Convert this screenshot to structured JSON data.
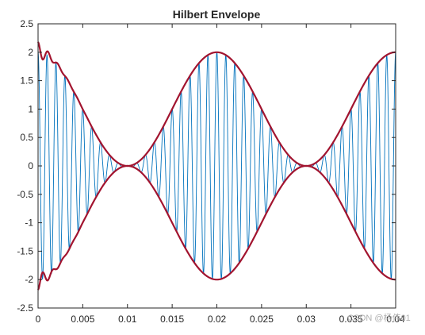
{
  "chart_data": {
    "type": "line",
    "title": "Hilbert Envelope",
    "xlabel": "",
    "ylabel": "",
    "xlim": [
      0,
      0.04
    ],
    "ylim": [
      -2.5,
      2.5
    ],
    "xticks": [
      "0",
      "0.005",
      "0.01",
      "0.015",
      "0.02",
      "0.025",
      "0.03",
      "0.035",
      "0.04"
    ],
    "yticks": [
      "-2.5",
      "-2",
      "-1.5",
      "-1",
      "-0.5",
      "0",
      "0.5",
      "1",
      "1.5",
      "2",
      "2.5"
    ],
    "grid": false,
    "legend": "none",
    "series": [
      {
        "kind": "signal",
        "description_formula": "(1 + cos(2*pi*50*t)) * cos(2*pi*1000*t)",
        "carrier_hz": 1000,
        "modulation_hz": 50,
        "color": "#0072BD"
      },
      {
        "kind": "upper-envelope",
        "description_formula": "1 + cos(2*pi*50*t)",
        "color": "#A2142F"
      },
      {
        "kind": "lower-envelope",
        "description_formula": "-(1 + cos(2*pi*50*t))",
        "color": "#A2142F"
      }
    ],
    "edge_ripple_note": "envelope shows ripple near t=0"
  },
  "watermark": "CSDN @杨伟01"
}
